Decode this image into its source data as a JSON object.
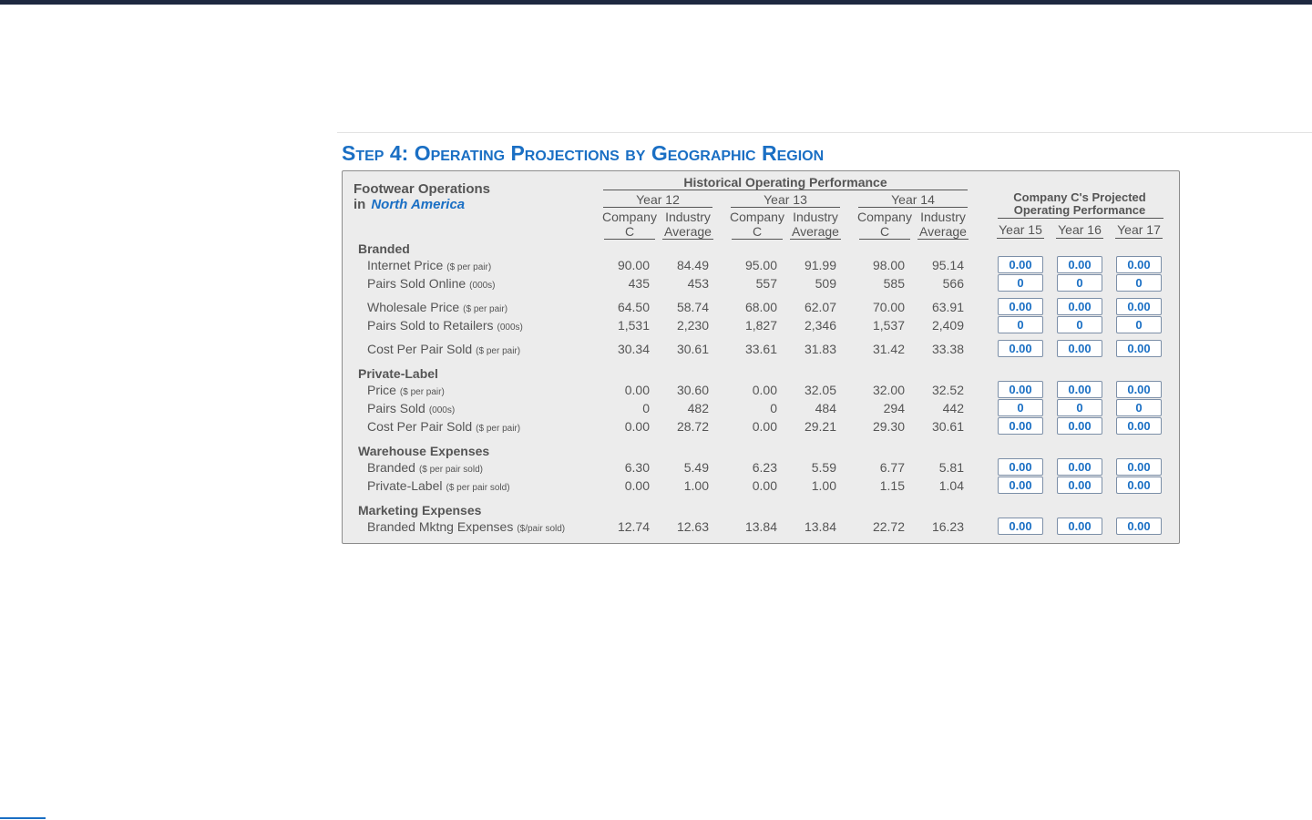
{
  "step_title": "Step 4: Operating Projections by Geographic Region",
  "panel": {
    "heading": "Footwear Operations",
    "region_prefix": "in",
    "region": "North America",
    "historical_title": "Historical Operating Performance",
    "years": [
      "Year 12",
      "Year 13",
      "Year 14"
    ],
    "col_headers": [
      "Company C",
      "Industry Average"
    ],
    "projected_title": "Company C's Projected Operating Performance",
    "projected_years": [
      "Year 15",
      "Year 16",
      "Year 17"
    ],
    "sections": [
      {
        "title": "Branded",
        "groups": [
          [
            {
              "label": "Internet Price",
              "unit": "($ per pair)",
              "values": [
                "90.00",
                "84.49",
                "95.00",
                "91.99",
                "98.00",
                "95.14"
              ],
              "inputs": [
                "0.00",
                "0.00",
                "0.00"
              ]
            },
            {
              "label": "Pairs Sold Online",
              "unit": "(000s)",
              "values": [
                "435",
                "453",
                "557",
                "509",
                "585",
                "566"
              ],
              "inputs": [
                "0",
                "0",
                "0"
              ]
            }
          ],
          [
            {
              "label": "Wholesale Price",
              "unit": "($ per pair)",
              "values": [
                "64.50",
                "58.74",
                "68.00",
                "62.07",
                "70.00",
                "63.91"
              ],
              "inputs": [
                "0.00",
                "0.00",
                "0.00"
              ]
            },
            {
              "label": "Pairs Sold to Retailers",
              "unit": "(000s)",
              "values": [
                "1,531",
                "2,230",
                "1,827",
                "2,346",
                "1,537",
                "2,409"
              ],
              "inputs": [
                "0",
                "0",
                "0"
              ]
            }
          ],
          [
            {
              "label": "Cost Per Pair Sold",
              "unit": "($ per pair)",
              "values": [
                "30.34",
                "30.61",
                "33.61",
                "31.83",
                "31.42",
                "33.38"
              ],
              "inputs": [
                "0.00",
                "0.00",
                "0.00"
              ]
            }
          ]
        ]
      },
      {
        "title": "Private-Label",
        "groups": [
          [
            {
              "label": "Price",
              "unit": "($ per pair)",
              "values": [
                "0.00",
                "30.60",
                "0.00",
                "32.05",
                "32.00",
                "32.52"
              ],
              "inputs": [
                "0.00",
                "0.00",
                "0.00"
              ]
            },
            {
              "label": "Pairs Sold",
              "unit": "(000s)",
              "values": [
                "0",
                "482",
                "0",
                "484",
                "294",
                "442"
              ],
              "inputs": [
                "0",
                "0",
                "0"
              ]
            },
            {
              "label": "Cost Per Pair Sold",
              "unit": "($ per pair)",
              "values": [
                "0.00",
                "28.72",
                "0.00",
                "29.21",
                "29.30",
                "30.61"
              ],
              "inputs": [
                "0.00",
                "0.00",
                "0.00"
              ]
            }
          ]
        ]
      },
      {
        "title": "Warehouse Expenses",
        "groups": [
          [
            {
              "label": "Branded",
              "unit": "($ per pair sold)",
              "values": [
                "6.30",
                "5.49",
                "6.23",
                "5.59",
                "6.77",
                "5.81"
              ],
              "inputs": [
                "0.00",
                "0.00",
                "0.00"
              ]
            },
            {
              "label": "Private-Label",
              "unit": "($ per pair sold)",
              "values": [
                "0.00",
                "1.00",
                "0.00",
                "1.00",
                "1.15",
                "1.04"
              ],
              "inputs": [
                "0.00",
                "0.00",
                "0.00"
              ]
            }
          ]
        ]
      },
      {
        "title": "Marketing Expenses",
        "groups": [
          [
            {
              "label": "Branded Mktng Expenses",
              "unit": "($/pair sold)",
              "values": [
                "12.74",
                "12.63",
                "13.84",
                "13.84",
                "22.72",
                "16.23"
              ],
              "inputs": [
                "0.00",
                "0.00",
                "0.00"
              ]
            }
          ]
        ]
      }
    ]
  }
}
